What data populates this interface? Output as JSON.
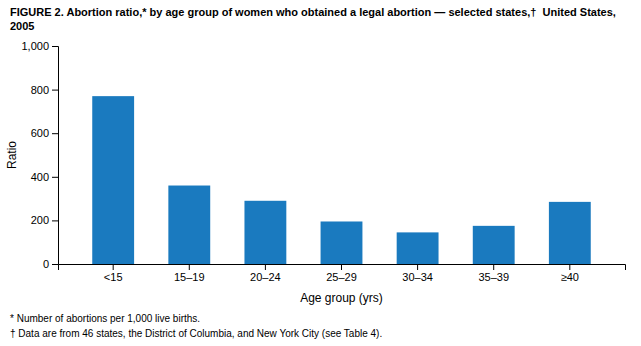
{
  "chart_data": {
    "type": "bar",
    "title": "FIGURE 2. Abortion ratio,* by age group of women who obtained a legal abortion — selected states,†  United States, 2005",
    "categories": [
      "<15",
      "15–19",
      "20–24",
      "25–29",
      "30–34",
      "35–39",
      "≥40"
    ],
    "values": [
      770,
      360,
      290,
      195,
      145,
      175,
      285
    ],
    "color": "#1a7abf",
    "xlabel": "Age group (yrs)",
    "ylabel": "Ratio",
    "ylim": [
      0,
      1000
    ],
    "yticks": [
      0,
      200,
      400,
      600,
      800,
      {
        "value": 1000,
        "label": "1,000"
      }
    ],
    "grid": false,
    "footnotes": [
      "* Number of abortions per 1,000 live births.",
      "† Data are from 46 states, the District of Columbia, and New York City (see Table 4)."
    ]
  }
}
